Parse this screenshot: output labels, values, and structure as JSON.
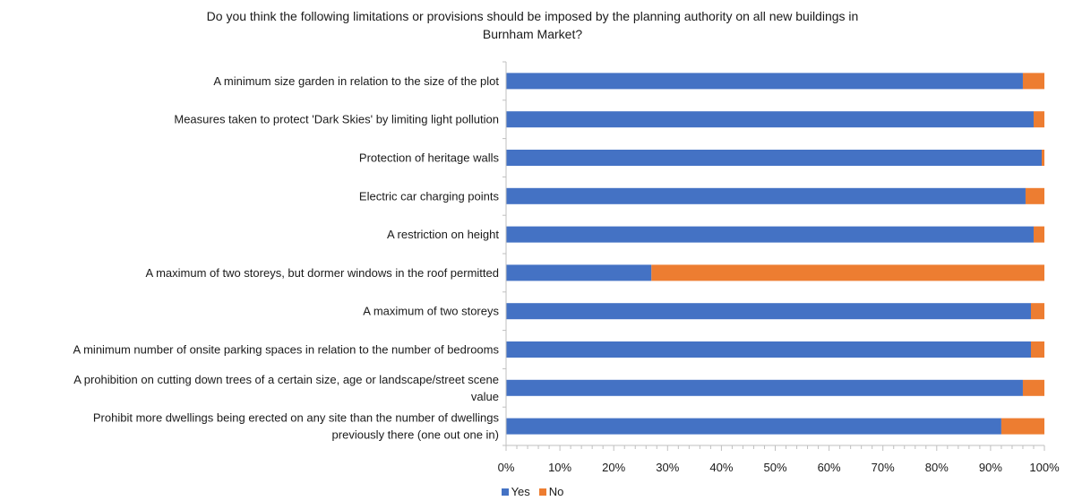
{
  "colors": {
    "yes": "#4472C4",
    "no": "#ED7D31",
    "axis": "#BFBFBF"
  },
  "chart_data": {
    "type": "bar",
    "orientation": "horizontal",
    "stacked": "percent",
    "title": "Do you think the following limitations or provisions should be imposed by the planning authority on all new buildings in Burnham Market?",
    "title_lines": [
      "Do you think the following limitations or provisions should be imposed by the planning authority on all new buildings in",
      "Burnham Market?"
    ],
    "categories": [
      "A minimum size garden in relation to the size of the plot",
      "Measures taken to protect 'Dark Skies' by limiting light pollution",
      "Protection of heritage walls",
      "Electric car charging points",
      "A restriction on height",
      "A maximum of two storeys, but dormer windows in the roof permitted",
      "A maximum of two storeys",
      "A minimum number of onsite parking spaces in relation to the number of bedrooms",
      "A prohibition on cutting down trees of a certain size, age or landscape/street scene value",
      "Prohibit more dwellings being erected on any site than the number of dwellings previously there (one out one in)"
    ],
    "category_lines": [
      [
        "A minimum size garden in relation to the size of the plot"
      ],
      [
        "Measures taken to protect 'Dark Skies' by limiting light pollution"
      ],
      [
        "Protection of heritage walls"
      ],
      [
        "Electric car charging points"
      ],
      [
        "A restriction on height"
      ],
      [
        "A maximum of two storeys, but dormer windows in the roof permitted"
      ],
      [
        "A maximum of two storeys"
      ],
      [
        "A minimum number of onsite parking spaces in relation to the number of bedrooms"
      ],
      [
        "A prohibition on cutting down trees of a certain size, age or landscape/street scene",
        "value"
      ],
      [
        "Prohibit more dwellings being erected on any site than the number of dwellings",
        "previously there (one out one in)"
      ]
    ],
    "series": [
      {
        "name": "Yes",
        "values": [
          96,
          98,
          99.5,
          96.5,
          98,
          27,
          97.5,
          97.5,
          96,
          92
        ]
      },
      {
        "name": "No",
        "values": [
          4,
          2,
          0.5,
          3.5,
          2,
          73,
          2.5,
          2.5,
          4,
          8
        ]
      }
    ],
    "xlim": [
      0,
      100
    ],
    "x_ticks": [
      "0%",
      "10%",
      "20%",
      "30%",
      "40%",
      "50%",
      "60%",
      "70%",
      "80%",
      "90%",
      "100%"
    ],
    "xlabel": "",
    "ylabel": "",
    "grid": false,
    "legend_position": "bottom"
  }
}
